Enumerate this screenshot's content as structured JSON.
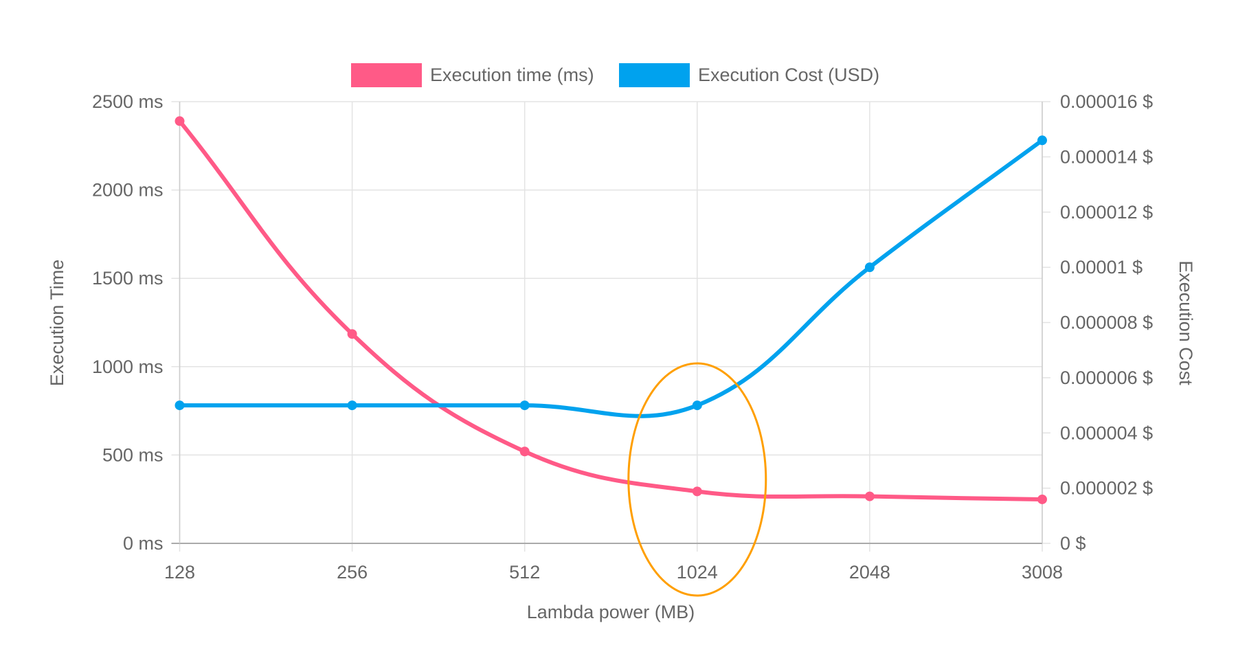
{
  "chart_data": {
    "type": "line",
    "categories": [
      "128",
      "256",
      "512",
      "1024",
      "2048",
      "3008"
    ],
    "xlabel": "Lambda power (MB)",
    "ylabel_left": "Execution Time",
    "ylabel_right": "Execution Cost",
    "y_left": {
      "lim": [
        0,
        2500
      ],
      "ticks": [
        0,
        500,
        1000,
        1500,
        2000,
        2500
      ],
      "tick_labels": [
        "0 ms",
        "500 ms",
        "1000 ms",
        "1500 ms",
        "2000 ms",
        "2500 ms"
      ]
    },
    "y_right": {
      "lim": [
        0,
        1.6e-05
      ],
      "ticks": [
        0,
        2e-06,
        4e-06,
        6e-06,
        8e-06,
        1e-05,
        1.2e-05,
        1.4e-05,
        1.6e-05
      ],
      "tick_labels": [
        "0 $",
        "0.000002 $",
        "0.000004 $",
        "0.000006 $",
        "0.000008 $",
        "0.00001 $",
        "0.000012 $",
        "0.000014 $",
        "0.000016 $"
      ]
    },
    "grid": true,
    "legend_position": "top",
    "series": [
      {
        "name": "Execution time (ms)",
        "axis": "left",
        "color": "#ff5a87",
        "values": [
          2390,
          1185,
          520,
          294,
          266,
          249
        ]
      },
      {
        "name": "Execution Cost (USD)",
        "axis": "right",
        "color": "#00a2ee",
        "values": [
          5e-06,
          5e-06,
          5e-06,
          5e-06,
          1e-05,
          1.46e-05
        ]
      }
    ],
    "annotation": {
      "type": "ellipse",
      "around_category": "1024",
      "color": "#ff9f00"
    }
  }
}
